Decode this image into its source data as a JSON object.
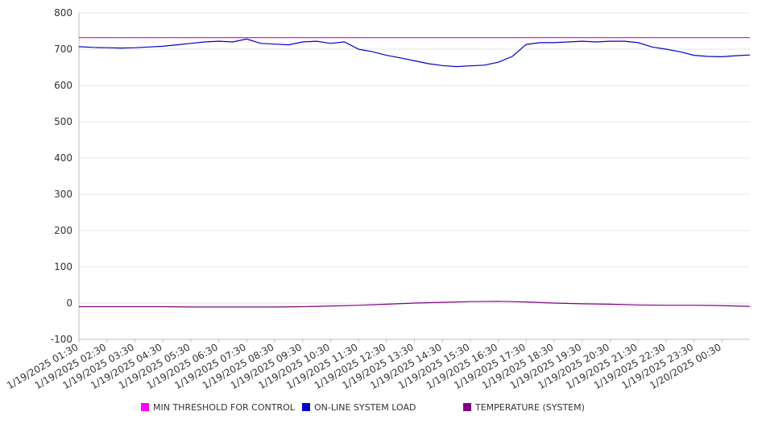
{
  "chart_data": {
    "type": "line",
    "title": "",
    "xlabel": "",
    "ylabel": "",
    "ylim": [
      -100,
      800
    ],
    "y_ticks": [
      -100,
      0,
      100,
      200,
      300,
      400,
      500,
      600,
      700,
      800
    ],
    "x_ticks": [
      "1/19/2025 01:30",
      "1/19/2025 02:30",
      "1/19/2025 03:30",
      "1/19/2025 04:30",
      "1/19/2025 05:30",
      "1/19/2025 06:30",
      "1/19/2025 07:30",
      "1/19/2025 08:30",
      "1/19/2025 09:30",
      "1/19/2025 10:30",
      "1/19/2025 11:30",
      "1/19/2025 12:30",
      "1/19/2025 13:30",
      "1/19/2025 14:30",
      "1/19/2025 15:30",
      "1/19/2025 16:30",
      "1/19/2025 17:30",
      "1/19/2025 18:30",
      "1/19/2025 19:30",
      "1/19/2025 20:30",
      "1/19/2025 21:30",
      "1/19/2025 22:30",
      "1/19/2025 23:30",
      "1/20/2025 00:30"
    ],
    "grid": true,
    "legend_position": "bottom",
    "series": [
      {
        "name": "MIN THRESHOLD FOR CONTROL",
        "color": "#ff00ff",
        "x": [
          "1/19/2025 01:30",
          "1/20/2025 01:30"
        ],
        "values": [
          732,
          732
        ]
      },
      {
        "name": "ON-LINE SYSTEM LOAD",
        "color": "#0000cc",
        "x": [
          "1/19/2025 01:30",
          "1/19/2025 02:00",
          "1/19/2025 02:30",
          "1/19/2025 03:00",
          "1/19/2025 03:30",
          "1/19/2025 04:00",
          "1/19/2025 04:30",
          "1/19/2025 05:00",
          "1/19/2025 05:30",
          "1/19/2025 06:00",
          "1/19/2025 06:30",
          "1/19/2025 07:00",
          "1/19/2025 07:30",
          "1/19/2025 08:00",
          "1/19/2025 08:30",
          "1/19/2025 09:00",
          "1/19/2025 09:30",
          "1/19/2025 10:00",
          "1/19/2025 10:30",
          "1/19/2025 11:00",
          "1/19/2025 11:30",
          "1/19/2025 12:00",
          "1/19/2025 12:30",
          "1/19/2025 13:00",
          "1/19/2025 13:30",
          "1/19/2025 14:00",
          "1/19/2025 14:30",
          "1/19/2025 15:00",
          "1/19/2025 15:30",
          "1/19/2025 16:00",
          "1/19/2025 16:30",
          "1/19/2025 17:00",
          "1/19/2025 17:30",
          "1/19/2025 18:00",
          "1/19/2025 18:30",
          "1/19/2025 19:00",
          "1/19/2025 19:30",
          "1/19/2025 20:00",
          "1/19/2025 20:30",
          "1/19/2025 21:00",
          "1/19/2025 21:30",
          "1/19/2025 22:00",
          "1/19/2025 22:30",
          "1/19/2025 23:00",
          "1/19/2025 23:30",
          "1/20/2025 00:00",
          "1/20/2025 00:30",
          "1/20/2025 01:00",
          "1/20/2025 01:30"
        ],
        "values": [
          707,
          705,
          704,
          703,
          704,
          706,
          708,
          712,
          716,
          720,
          722,
          720,
          728,
          716,
          714,
          712,
          720,
          722,
          716,
          720,
          700,
          693,
          683,
          676,
          668,
          660,
          655,
          652,
          654,
          656,
          664,
          680,
          713,
          718,
          718,
          720,
          722,
          720,
          722,
          722,
          718,
          706,
          700,
          693,
          683,
          680,
          679,
          682,
          684
        ]
      },
      {
        "name": "TEMPERATURE (SYSTEM)",
        "color": "#800080",
        "x": [
          "1/19/2025 01:30",
          "1/19/2025 02:30",
          "1/19/2025 03:30",
          "1/19/2025 04:30",
          "1/19/2025 05:30",
          "1/19/2025 06:30",
          "1/19/2025 07:30",
          "1/19/2025 08:30",
          "1/19/2025 09:30",
          "1/19/2025 10:30",
          "1/19/2025 11:30",
          "1/19/2025 12:30",
          "1/19/2025 13:30",
          "1/19/2025 14:30",
          "1/19/2025 15:30",
          "1/19/2025 16:30",
          "1/19/2025 17:30",
          "1/19/2025 18:30",
          "1/19/2025 19:30",
          "1/19/2025 20:30",
          "1/19/2025 21:30",
          "1/19/2025 22:30",
          "1/19/2025 23:30",
          "1/20/2025 00:30",
          "1/20/2025 01:30"
        ],
        "values": [
          -10,
          -10,
          -10,
          -10,
          -11,
          -11,
          -11,
          -11,
          -10,
          -8,
          -6,
          -3,
          0,
          2,
          4,
          5,
          3,
          0,
          -2,
          -3,
          -5,
          -6,
          -6,
          -7,
          -9
        ]
      }
    ]
  }
}
